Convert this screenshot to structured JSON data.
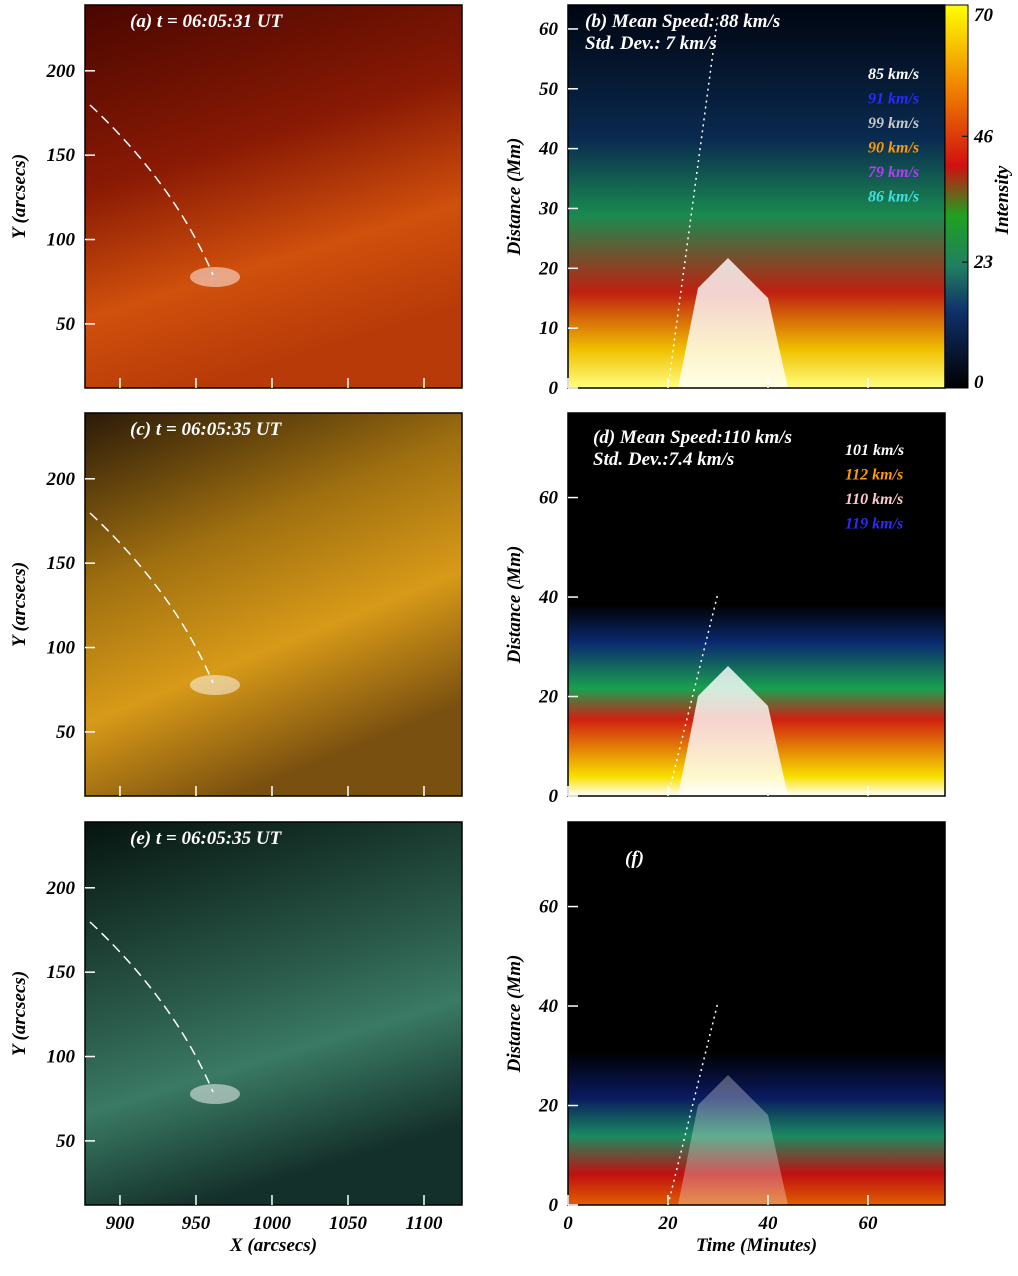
{
  "chart_data": [
    {
      "type": "image",
      "label": "(a) t = 06:05:31 UT",
      "ylabel": "Y (arcsecs)",
      "ylim": [
        12,
        239
      ],
      "yticks": [
        50,
        100,
        150,
        200
      ]
    },
    {
      "type": "heatmap",
      "label": "(b) Mean Speed: 88 km/s",
      "sublabel": "Std. Dev.: 7 km/s",
      "ylabel": "Distance (Mm)",
      "ylim": [
        0,
        64
      ],
      "yticks": [
        0,
        10,
        20,
        30,
        40,
        50,
        60
      ],
      "speeds": [
        {
          "text": "85 km/s",
          "color": "#ffffff"
        },
        {
          "text": "91 km/s",
          "color": "#2a2aff"
        },
        {
          "text": "99 km/s",
          "color": "#c8c8c8"
        },
        {
          "text": "90 km/s",
          "color": "#ff9a00"
        },
        {
          "text": "79 km/s",
          "color": "#b040f0"
        },
        {
          "text": "86 km/s",
          "color": "#40e0e0"
        }
      ],
      "colorbar": {
        "label": "Intensity",
        "lim": [
          0,
          70
        ],
        "ticks": [
          0,
          23,
          46,
          70
        ]
      }
    },
    {
      "type": "image",
      "label": "(c)  t = 06:05:35 UT",
      "ylabel": "Y (arcsecs)",
      "ylim": [
        12,
        239
      ],
      "yticks": [
        50,
        100,
        150,
        200
      ]
    },
    {
      "type": "heatmap",
      "label": "(d) Mean Speed:110 km/s",
      "sublabel": "Std. Dev.:7.4 km/s",
      "ylabel": "Distance (Mm)",
      "ylim": [
        0,
        77
      ],
      "yticks": [
        0,
        20,
        40,
        60
      ],
      "speeds": [
        {
          "text": "101 km/s",
          "color": "#ffffff"
        },
        {
          "text": "112 km/s",
          "color": "#ff9a00"
        },
        {
          "text": "110 km/s",
          "color": "#ffc8c8"
        },
        {
          "text": "119 km/s",
          "color": "#2a2aff"
        }
      ]
    },
    {
      "type": "image",
      "label": "(e) t = 06:05:35 UT",
      "ylabel": "Y (arcsecs)",
      "ylim": [
        12,
        239
      ],
      "yticks": [
        50,
        100,
        150,
        200
      ],
      "xlabel": "X (arcsecs)",
      "xlim": [
        877,
        1125
      ],
      "xticks": [
        900,
        950,
        1000,
        1050,
        1100
      ]
    },
    {
      "type": "heatmap",
      "label": "(f)",
      "ylabel": "Distance (Mm)",
      "ylim": [
        0,
        77
      ],
      "yticks": [
        0,
        20,
        40,
        60
      ],
      "xlabel": "Time (Minutes)",
      "xlim": [
        0,
        75.4
      ],
      "xticks": [
        0,
        20,
        40,
        60
      ]
    }
  ]
}
